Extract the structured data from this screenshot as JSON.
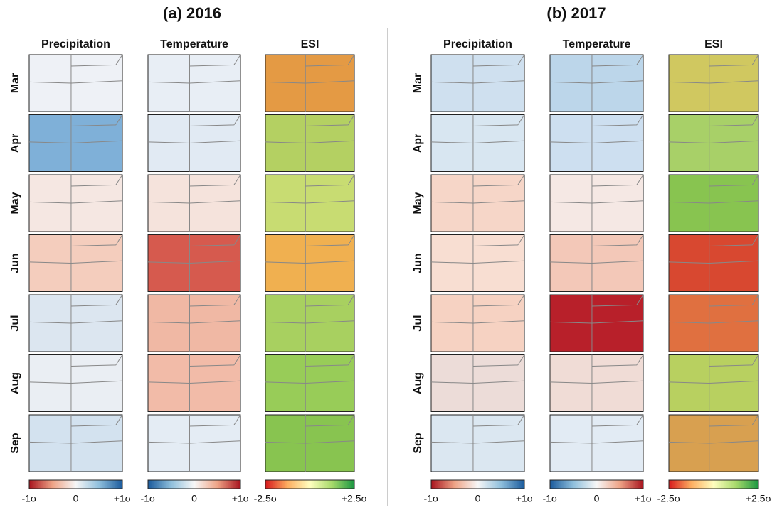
{
  "panels": [
    {
      "title": "(a) 2016",
      "columns": [
        "Precipitation",
        "Temperature",
        "ESI"
      ],
      "rows": [
        "Mar",
        "Apr",
        "May",
        "Jun",
        "Jul",
        "Aug",
        "Sep"
      ],
      "colorbars": [
        {
          "labels": [
            "-1σ",
            "0",
            "+1σ"
          ]
        },
        {
          "labels": [
            "-1σ",
            "0",
            "+1σ"
          ]
        },
        {
          "labels": [
            "-2.5σ",
            "+2.5σ"
          ]
        }
      ]
    },
    {
      "title": "(b) 2017",
      "columns": [
        "Precipitation",
        "Temperature",
        "ESI"
      ],
      "rows": [
        "Mar",
        "Apr",
        "May",
        "Jun",
        "Jul",
        "Aug",
        "Sep"
      ],
      "colorbars": [
        {
          "labels": [
            "-1σ",
            "0",
            "+1σ"
          ]
        },
        {
          "labels": [
            "-1σ",
            "0",
            "+1σ"
          ]
        },
        {
          "labels": [
            "-2.5σ",
            "+2.5σ"
          ]
        }
      ]
    }
  ]
}
